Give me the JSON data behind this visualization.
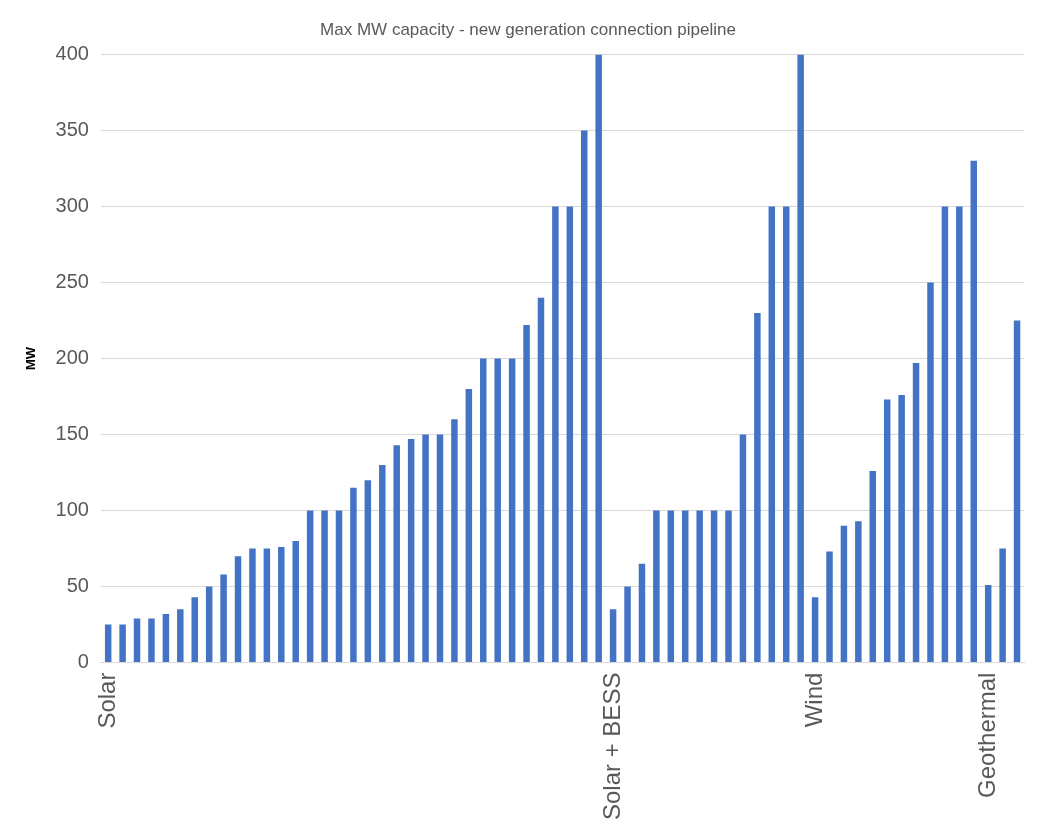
{
  "chart_data": {
    "type": "bar",
    "title": "Max MW capacity - new generation connection pipeline",
    "ylabel": "MW",
    "categories": [
      "Solar",
      null,
      null,
      null,
      null,
      null,
      null,
      null,
      null,
      null,
      null,
      null,
      null,
      null,
      null,
      null,
      null,
      null,
      null,
      null,
      null,
      null,
      null,
      null,
      null,
      null,
      null,
      null,
      null,
      null,
      null,
      null,
      null,
      null,
      null,
      "Solar + BESS",
      null,
      null,
      null,
      null,
      null,
      null,
      null,
      null,
      null,
      null,
      null,
      null,
      null,
      "Wind",
      null,
      null,
      null,
      null,
      null,
      null,
      null,
      null,
      null,
      null,
      null,
      "Geothermal",
      null,
      null
    ],
    "values": [
      25,
      25,
      29,
      29,
      32,
      35,
      43,
      50,
      58,
      70,
      75,
      75,
      76,
      80,
      100,
      100,
      100,
      115,
      120,
      130,
      143,
      147,
      150,
      150,
      160,
      180,
      200,
      200,
      200,
      222,
      240,
      300,
      300,
      350,
      400,
      35,
      50,
      65,
      100,
      100,
      100,
      100,
      100,
      100,
      150,
      230,
      300,
      300,
      400,
      43,
      73,
      90,
      93,
      126,
      173,
      176,
      197,
      250,
      300,
      300,
      330,
      51,
      75,
      225
    ],
    "color": "#4472c4",
    "ylim": [
      0,
      400
    ],
    "yticks": [
      0,
      50,
      100,
      150,
      200,
      250,
      300,
      350,
      400
    ],
    "grid": "y",
    "legend": false
  }
}
